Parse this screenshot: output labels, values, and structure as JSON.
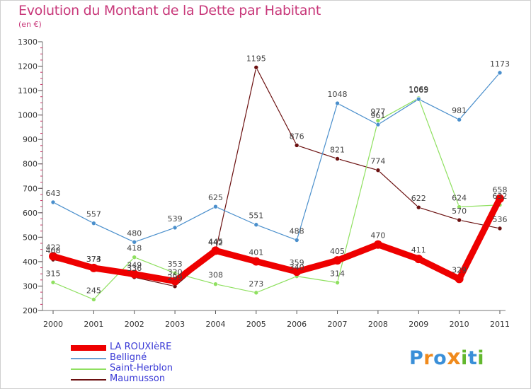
{
  "chart_data": {
    "type": "line",
    "title": "Evolution du Montant de la Dette par Habitant",
    "subtitle": "(en €)",
    "categories": [
      "2000",
      "2001",
      "2002",
      "2003",
      "2004",
      "2005",
      "2006",
      "2007",
      "2008",
      "2009",
      "2010",
      "2011"
    ],
    "ylim": [
      200,
      1300
    ],
    "yticks": [
      200,
      300,
      400,
      500,
      600,
      700,
      800,
      900,
      1000,
      1100,
      1200,
      1300
    ],
    "grid": false,
    "legend_position": "bottom-left",
    "series": [
      {
        "name": "Maumusson",
        "color": "#6b1010",
        "values": [
          408,
          373,
          336,
          299,
          442,
          1195,
          876,
          821,
          774,
          622,
          570,
          536
        ]
      },
      {
        "name": "Saint-Herblon",
        "color": "#8fe060",
        "values": [
          315,
          245,
          418,
          353,
          308,
          273,
          340,
          314,
          977,
          1069,
          624,
          632
        ]
      },
      {
        "name": "Belligné",
        "color": "#4a8fcc",
        "values": [
          643,
          557,
          480,
          539,
          625,
          551,
          488,
          1048,
          961,
          1065,
          981,
          1173
        ]
      },
      {
        "name": "LA ROUXIèRE",
        "color": "#ee0000",
        "values": [
          422,
          374,
          349,
          320,
          445,
          401,
          359,
          405,
          470,
          411,
          329,
          658
        ]
      }
    ]
  },
  "legend": {
    "items": [
      {
        "name": "LA ROUXIèRE",
        "color": "#ee0000"
      },
      {
        "name": "Belligné",
        "color": "#6aa0d4"
      },
      {
        "name": "Saint-Herblon",
        "color": "#8fe060"
      },
      {
        "name": "Maumusson",
        "color": "#6b1010"
      }
    ]
  },
  "brand": {
    "letters": [
      "P",
      "r",
      "o",
      "x",
      "i",
      "t",
      "i"
    ],
    "colors": [
      "#3a8fd8",
      "#f08a1c",
      "#3a8fd8",
      "#f08a1c",
      "#62b82e",
      "#3a8fd8",
      "#62b82e"
    ]
  }
}
